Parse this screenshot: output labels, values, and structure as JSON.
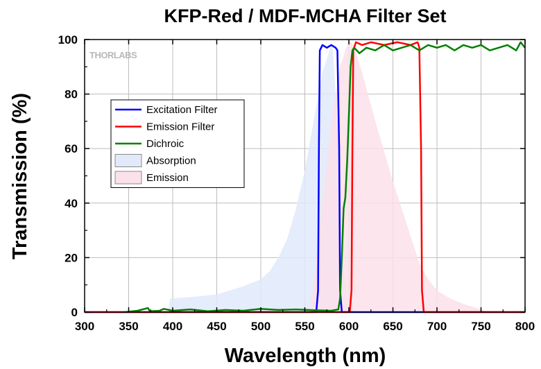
{
  "chart_data": {
    "type": "line",
    "title": "KFP-Red / MDF-MCHA Filter Set",
    "xlabel": "Wavelength (nm)",
    "ylabel": "Transmission (%)",
    "xlim": [
      300,
      800
    ],
    "ylim": [
      0,
      100
    ],
    "xticks": [
      300,
      350,
      400,
      450,
      500,
      550,
      600,
      650,
      700,
      750,
      800
    ],
    "yticks": [
      0,
      20,
      40,
      60,
      80,
      100
    ],
    "grid": true,
    "legend_position": "upper-left",
    "watermark": "THORLABS",
    "series": [
      {
        "name": "Excitation Filter",
        "kind": "line",
        "color": "#0000ff",
        "points": [
          [
            300,
            0
          ],
          [
            563,
            0
          ],
          [
            565,
            8
          ],
          [
            566,
            60
          ],
          [
            567,
            96
          ],
          [
            570,
            98
          ],
          [
            575,
            97
          ],
          [
            580,
            98
          ],
          [
            585,
            97
          ],
          [
            587,
            96
          ],
          [
            589,
            60
          ],
          [
            590,
            8
          ],
          [
            592,
            0
          ],
          [
            800,
            0
          ]
        ]
      },
      {
        "name": "Emission Filter",
        "kind": "line",
        "color": "#ff0000",
        "points": [
          [
            300,
            0
          ],
          [
            601,
            0
          ],
          [
            603,
            8
          ],
          [
            604,
            60
          ],
          [
            605,
            96
          ],
          [
            608,
            99
          ],
          [
            615,
            98
          ],
          [
            625,
            99
          ],
          [
            640,
            98
          ],
          [
            655,
            99
          ],
          [
            670,
            98
          ],
          [
            678,
            99
          ],
          [
            680,
            97
          ],
          [
            682,
            60
          ],
          [
            683,
            8
          ],
          [
            685,
            0
          ],
          [
            800,
            0
          ]
        ]
      },
      {
        "name": "Dichroic",
        "kind": "line",
        "color": "#008000",
        "points": [
          [
            345,
            0
          ],
          [
            360,
            0.5
          ],
          [
            372,
            1.5
          ],
          [
            374,
            0.3
          ],
          [
            385,
            0.5
          ],
          [
            390,
            1.2
          ],
          [
            400,
            0.5
          ],
          [
            420,
            1
          ],
          [
            440,
            0.3
          ],
          [
            460,
            0.8
          ],
          [
            480,
            0.5
          ],
          [
            500,
            1.2
          ],
          [
            520,
            0.8
          ],
          [
            540,
            1
          ],
          [
            560,
            0.7
          ],
          [
            580,
            0.5
          ],
          [
            588,
            1
          ],
          [
            590,
            5
          ],
          [
            592,
            20
          ],
          [
            594,
            38
          ],
          [
            596,
            42
          ],
          [
            598,
            55
          ],
          [
            600,
            72
          ],
          [
            602,
            90
          ],
          [
            604,
            96
          ],
          [
            606,
            97
          ],
          [
            612,
            95
          ],
          [
            620,
            97
          ],
          [
            630,
            96
          ],
          [
            640,
            98
          ],
          [
            650,
            96
          ],
          [
            660,
            97
          ],
          [
            670,
            98
          ],
          [
            680,
            96
          ],
          [
            690,
            98
          ],
          [
            700,
            97
          ],
          [
            710,
            98
          ],
          [
            720,
            96
          ],
          [
            730,
            98
          ],
          [
            740,
            97
          ],
          [
            750,
            98
          ],
          [
            760,
            96
          ],
          [
            770,
            97
          ],
          [
            780,
            98
          ],
          [
            790,
            96
          ],
          [
            795,
            99
          ],
          [
            800,
            97
          ]
        ]
      },
      {
        "name": "Absorption",
        "kind": "area",
        "color": "#e1e9fa",
        "points": [
          [
            395,
            0
          ],
          [
            397,
            5
          ],
          [
            420,
            5.5
          ],
          [
            450,
            6.5
          ],
          [
            480,
            9.5
          ],
          [
            500,
            12
          ],
          [
            510,
            15
          ],
          [
            520,
            20
          ],
          [
            530,
            27
          ],
          [
            540,
            38
          ],
          [
            550,
            52
          ],
          [
            560,
            70
          ],
          [
            570,
            88
          ],
          [
            578,
            96
          ],
          [
            580,
            98
          ],
          [
            582,
            96
          ],
          [
            586,
            75
          ],
          [
            590,
            50
          ],
          [
            592,
            30
          ],
          [
            594,
            15
          ],
          [
            598,
            5
          ],
          [
            605,
            1
          ],
          [
            615,
            0
          ]
        ]
      },
      {
        "name": "Emission",
        "kind": "area",
        "color": "#fbe1ea",
        "points": [
          [
            555,
            0
          ],
          [
            560,
            10
          ],
          [
            570,
            40
          ],
          [
            580,
            70
          ],
          [
            590,
            90
          ],
          [
            600,
            100
          ],
          [
            605,
            98
          ],
          [
            615,
            88
          ],
          [
            630,
            70
          ],
          [
            650,
            48
          ],
          [
            660,
            38
          ],
          [
            670,
            28
          ],
          [
            680,
            18
          ],
          [
            690,
            12
          ],
          [
            700,
            8
          ],
          [
            715,
            5
          ],
          [
            730,
            3
          ],
          [
            750,
            1
          ],
          [
            760,
            0
          ]
        ]
      }
    ]
  }
}
